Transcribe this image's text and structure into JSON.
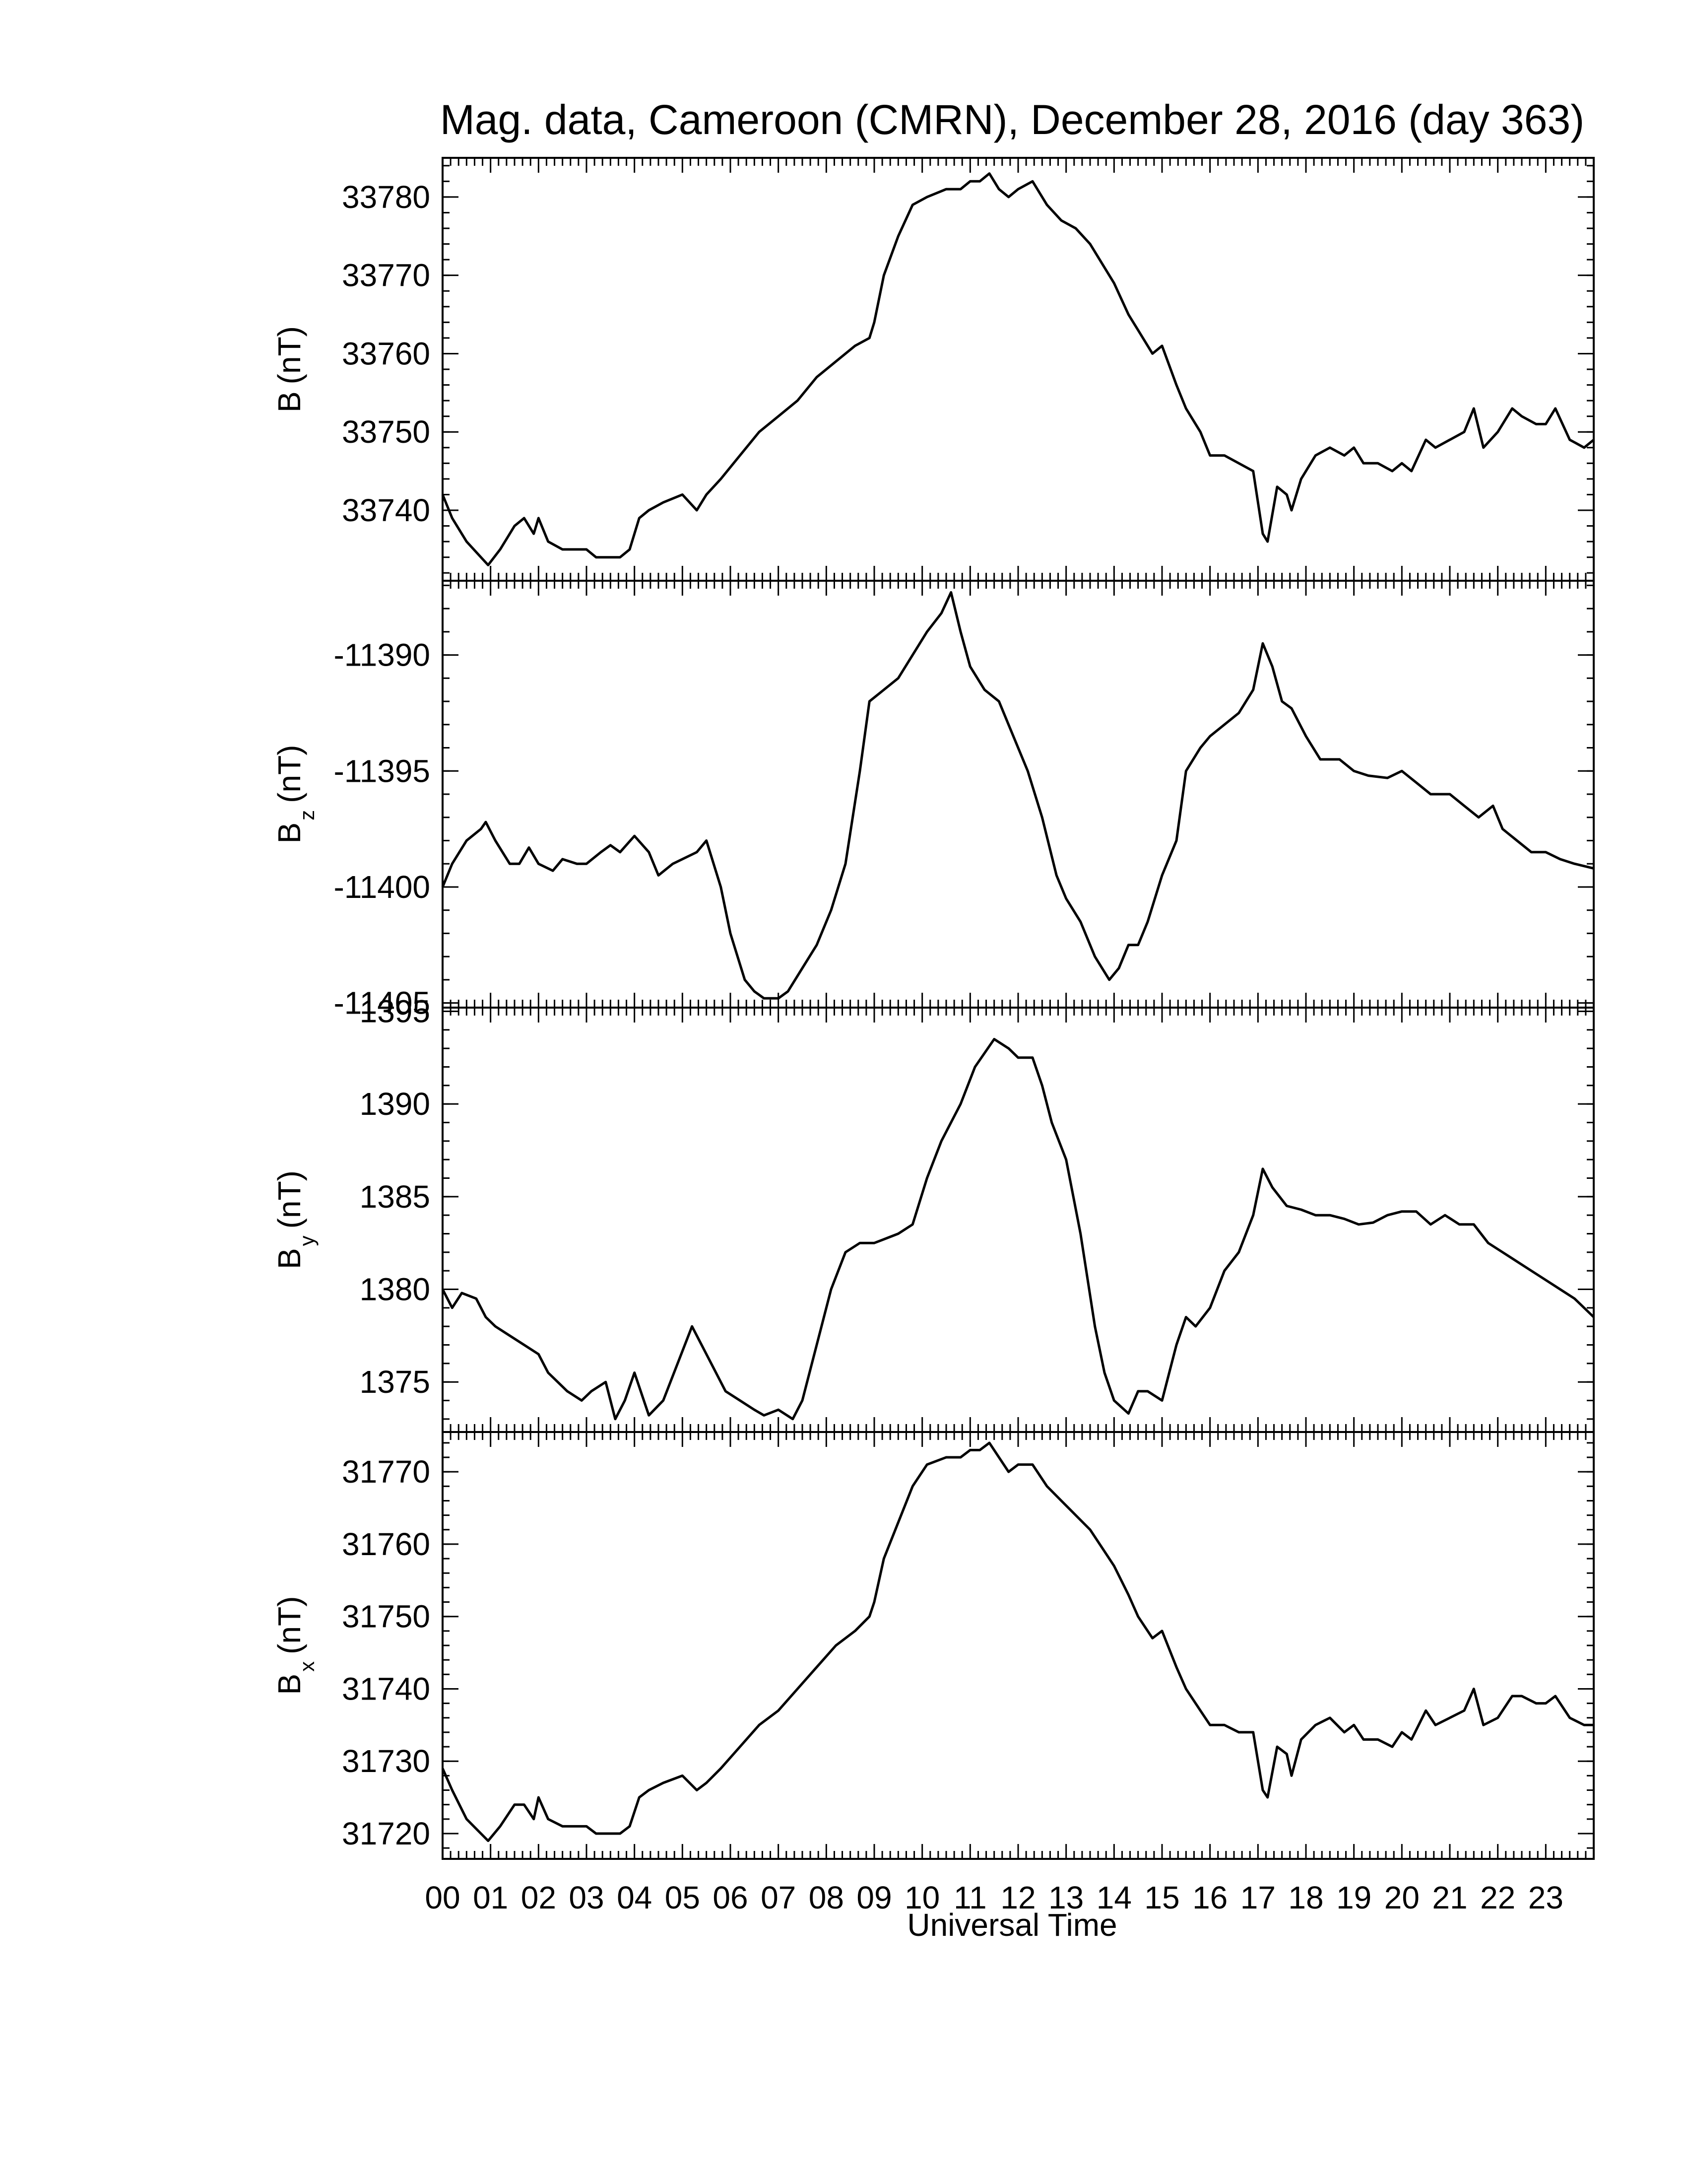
{
  "chart_data": {
    "type": "line",
    "title": "Mag. data, Cameroon (CMRN), December 28, 2016 (day 363)",
    "xlabel": "Universal Time",
    "x_ticks": [
      "00",
      "01",
      "02",
      "03",
      "04",
      "05",
      "06",
      "07",
      "08",
      "09",
      "10",
      "11",
      "12",
      "13",
      "14",
      "15",
      "16",
      "17",
      "18",
      "19",
      "20",
      "21",
      "22",
      "23"
    ],
    "xlim": [
      0,
      24
    ],
    "line_color": "#000000",
    "grid": false,
    "panels": [
      {
        "label_main": "B",
        "label_sub": "",
        "label_unit": "(nT)",
        "ylim": [
          33731,
          33785
        ],
        "yticks": [
          33740,
          33750,
          33760,
          33770,
          33780
        ],
        "ytick_labels": [
          "33740",
          "33750",
          "33760",
          "33770",
          "33780"
        ],
        "x": [
          0,
          0.2,
          0.5,
          0.8,
          0.95,
          1.2,
          1.5,
          1.7,
          1.9,
          2.0,
          2.2,
          2.5,
          2.8,
          3.0,
          3.2,
          3.5,
          3.7,
          3.9,
          4.1,
          4.3,
          4.6,
          5.0,
          5.3,
          5.5,
          5.8,
          6.2,
          6.6,
          7.0,
          7.4,
          7.8,
          8.2,
          8.6,
          8.9,
          9.0,
          9.2,
          9.5,
          9.8,
          10.1,
          10.5,
          10.8,
          11.0,
          11.2,
          11.4,
          11.6,
          11.8,
          12.0,
          12.3,
          12.6,
          12.9,
          13.2,
          13.5,
          13.8,
          14.0,
          14.3,
          14.5,
          14.8,
          15.0,
          15.3,
          15.5,
          15.8,
          16.0,
          16.3,
          16.6,
          16.9,
          17.1,
          17.2,
          17.4,
          17.6,
          17.7,
          17.9,
          18.2,
          18.5,
          18.8,
          19.0,
          19.2,
          19.5,
          19.8,
          20.0,
          20.2,
          20.5,
          20.7,
          21.0,
          21.3,
          21.5,
          21.7,
          22.0,
          22.3,
          22.5,
          22.8,
          23.0,
          23.2,
          23.5,
          23.8,
          24.0
        ],
        "values": [
          33742,
          33739,
          33736,
          33734,
          33733,
          33735,
          33738,
          33739,
          33737,
          33739,
          33736,
          33735,
          33735,
          33735,
          33734,
          33734,
          33734,
          33735,
          33739,
          33740,
          33741,
          33742,
          33740,
          33742,
          33744,
          33747,
          33750,
          33752,
          33754,
          33757,
          33759,
          33761,
          33762,
          33764,
          33770,
          33775,
          33779,
          33780,
          33781,
          33781,
          33782,
          33782,
          33783,
          33781,
          33780,
          33781,
          33782,
          33779,
          33777,
          33776,
          33774,
          33771,
          33769,
          33765,
          33763,
          33760,
          33761,
          33756,
          33753,
          33750,
          33747,
          33747,
          33746,
          33745,
          33737,
          33736,
          33743,
          33742,
          33740,
          33744,
          33747,
          33748,
          33747,
          33748,
          33746,
          33746,
          33745,
          33746,
          33745,
          33749,
          33748,
          33749,
          33750,
          33753,
          33748,
          33750,
          33753,
          33752,
          33751,
          33751,
          33753,
          33749,
          33748,
          33749
        ]
      },
      {
        "label_main": "B",
        "label_sub": "z",
        "label_unit": "(nT)",
        "ylim": [
          -11405.2,
          -11386.8
        ],
        "yticks": [
          -11405,
          -11400,
          -11395,
          -11390
        ],
        "ytick_labels": [
          "-11405",
          "-11400",
          "-11395",
          "-11390"
        ],
        "x": [
          0,
          0.2,
          0.5,
          0.8,
          0.9,
          1.1,
          1.4,
          1.6,
          1.8,
          2.0,
          2.3,
          2.5,
          2.8,
          3.0,
          3.3,
          3.5,
          3.7,
          4.0,
          4.3,
          4.5,
          4.8,
          5.0,
          5.3,
          5.5,
          5.8,
          6.0,
          6.3,
          6.5,
          6.7,
          7.0,
          7.2,
          7.5,
          7.8,
          8.1,
          8.4,
          8.7,
          8.9,
          9.2,
          9.5,
          9.8,
          10.1,
          10.4,
          10.6,
          10.8,
          11.0,
          11.3,
          11.6,
          11.9,
          12.2,
          12.5,
          12.8,
          13.0,
          13.3,
          13.6,
          13.9,
          14.1,
          14.3,
          14.5,
          14.7,
          15.0,
          15.3,
          15.5,
          15.8,
          16.0,
          16.3,
          16.6,
          16.9,
          17.1,
          17.3,
          17.5,
          17.7,
          18.0,
          18.3,
          18.7,
          19.0,
          19.3,
          19.7,
          20.0,
          20.3,
          20.6,
          21.0,
          21.3,
          21.6,
          21.9,
          22.1,
          22.4,
          22.7,
          23.0,
          23.3,
          23.6,
          24.0
        ],
        "values": [
          -11400,
          -11399,
          -11398,
          -11397.5,
          -11397.2,
          -11398,
          -11399,
          -11399,
          -11398.3,
          -11399,
          -11399.3,
          -11398.8,
          -11399,
          -11399,
          -11398.5,
          -11398.2,
          -11398.5,
          -11397.8,
          -11398.5,
          -11399.5,
          -11399,
          -11398.8,
          -11398.5,
          -11398,
          -11400,
          -11402,
          -11404,
          -11404.5,
          -11404.8,
          -11404.8,
          -11404.5,
          -11403.5,
          -11402.5,
          -11401,
          -11399,
          -11395,
          -11392,
          -11391.5,
          -11391,
          -11390,
          -11389,
          -11388.2,
          -11387.3,
          -11389,
          -11390.5,
          -11391.5,
          -11392,
          -11393.5,
          -11395,
          -11397,
          -11399.5,
          -11400.5,
          -11401.5,
          -11403,
          -11404,
          -11403.5,
          -11402.5,
          -11402.5,
          -11401.5,
          -11399.5,
          -11398,
          -11395,
          -11394,
          -11393.5,
          -11393,
          -11392.5,
          -11391.5,
          -11389.5,
          -11390.5,
          -11392,
          -11392.3,
          -11393.5,
          -11394.5,
          -11394.5,
          -11395,
          -11395.2,
          -11395.3,
          -11395,
          -11395.5,
          -11396,
          -11396,
          -11396.5,
          -11397,
          -11396.5,
          -11397.5,
          -11398,
          -11398.5,
          -11398.5,
          -11398.8,
          -11399,
          -11399.2
        ]
      },
      {
        "label_main": "B",
        "label_sub": "y",
        "label_unit": "(nT)",
        "ylim": [
          1372.3,
          1395.2
        ],
        "yticks": [
          1375,
          1380,
          1385,
          1390,
          1395
        ],
        "ytick_labels": [
          "1375",
          "1380",
          "1385",
          "1390",
          "1395"
        ],
        "x": [
          0,
          0.2,
          0.4,
          0.7,
          0.9,
          1.1,
          1.4,
          1.7,
          2.0,
          2.2,
          2.4,
          2.6,
          2.9,
          3.1,
          3.4,
          3.6,
          3.8,
          4.0,
          4.3,
          4.6,
          4.9,
          5.2,
          5.4,
          5.7,
          5.9,
          6.2,
          6.5,
          6.7,
          7.0,
          7.3,
          7.5,
          7.8,
          8.1,
          8.4,
          8.7,
          9.0,
          9.3,
          9.5,
          9.8,
          10.1,
          10.4,
          10.8,
          11.1,
          11.5,
          11.8,
          12.0,
          12.3,
          12.5,
          12.7,
          13.0,
          13.3,
          13.6,
          13.8,
          14.0,
          14.3,
          14.5,
          14.7,
          15.0,
          15.3,
          15.5,
          15.7,
          16.0,
          16.3,
          16.6,
          16.9,
          17.1,
          17.3,
          17.6,
          17.9,
          18.2,
          18.5,
          18.8,
          19.1,
          19.4,
          19.7,
          20.0,
          20.3,
          20.6,
          20.9,
          21.2,
          21.5,
          21.8,
          22.1,
          22.4,
          22.7,
          23.0,
          23.3,
          23.6,
          24.0
        ],
        "values": [
          1380,
          1379,
          1379.8,
          1379.5,
          1378.5,
          1378,
          1377.5,
          1377,
          1376.5,
          1375.5,
          1375,
          1374.5,
          1374,
          1374.5,
          1375,
          1373,
          1374,
          1375.5,
          1373.2,
          1374,
          1376,
          1378,
          1377,
          1375.5,
          1374.5,
          1374,
          1373.5,
          1373.2,
          1373.5,
          1373,
          1374,
          1377,
          1380,
          1382,
          1382.5,
          1382.5,
          1382.8,
          1383,
          1383.5,
          1386,
          1388,
          1390,
          1392,
          1393.5,
          1393,
          1392.5,
          1392.5,
          1391,
          1389,
          1387,
          1383,
          1378,
          1375.5,
          1374,
          1373.3,
          1374.5,
          1374.5,
          1374,
          1377,
          1378.5,
          1378,
          1379,
          1381,
          1382,
          1384,
          1386.5,
          1385.5,
          1384.5,
          1384.3,
          1384,
          1384,
          1383.8,
          1383.5,
          1383.6,
          1384,
          1384.2,
          1384.2,
          1383.5,
          1384,
          1383.5,
          1383.5,
          1382.5,
          1382,
          1381.5,
          1381,
          1380.5,
          1380,
          1379.5,
          1378.5
        ]
      },
      {
        "label_main": "B",
        "label_sub": "x",
        "label_unit": "(nT)",
        "ylim": [
          31716.5,
          31775.5
        ],
        "yticks": [
          31720,
          31730,
          31740,
          31750,
          31760,
          31770
        ],
        "ytick_labels": [
          "31720",
          "31730",
          "31740",
          "31750",
          "31760",
          "31770"
        ],
        "x": [
          0,
          0.2,
          0.5,
          0.8,
          0.95,
          1.2,
          1.5,
          1.7,
          1.9,
          2.0,
          2.2,
          2.5,
          2.8,
          3.0,
          3.2,
          3.5,
          3.7,
          3.9,
          4.1,
          4.3,
          4.6,
          5.0,
          5.3,
          5.5,
          5.8,
          6.2,
          6.6,
          7.0,
          7.4,
          7.8,
          8.2,
          8.6,
          8.9,
          9.0,
          9.2,
          9.5,
          9.8,
          10.1,
          10.5,
          10.8,
          11.0,
          11.2,
          11.4,
          11.6,
          11.8,
          12.0,
          12.3,
          12.6,
          12.9,
          13.2,
          13.5,
          13.8,
          14.0,
          14.3,
          14.5,
          14.8,
          15.0,
          15.3,
          15.5,
          15.8,
          16.0,
          16.3,
          16.6,
          16.9,
          17.1,
          17.2,
          17.4,
          17.6,
          17.7,
          17.9,
          18.2,
          18.5,
          18.8,
          19.0,
          19.2,
          19.5,
          19.8,
          20.0,
          20.2,
          20.5,
          20.7,
          21.0,
          21.3,
          21.5,
          21.7,
          22.0,
          22.3,
          22.5,
          22.8,
          23.0,
          23.2,
          23.5,
          23.8,
          24.0
        ],
        "values": [
          31729,
          31726,
          31722,
          31720,
          31719,
          31721,
          31724,
          31724,
          31722,
          31725,
          31722,
          31721,
          31721,
          31721,
          31720,
          31720,
          31720,
          31721,
          31725,
          31726,
          31727,
          31728,
          31726,
          31727,
          31729,
          31732,
          31735,
          31737,
          31740,
          31743,
          31746,
          31748,
          31750,
          31752,
          31758,
          31763,
          31768,
          31771,
          31772,
          31772,
          31773,
          31773,
          31774,
          31772,
          31770,
          31771,
          31771,
          31768,
          31766,
          31764,
          31762,
          31759,
          31757,
          31753,
          31750,
          31747,
          31748,
          31743,
          31740,
          31737,
          31735,
          31735,
          31734,
          31734,
          31726,
          31725,
          31732,
          31731,
          31728,
          31733,
          31735,
          31736,
          31734,
          31735,
          31733,
          31733,
          31732,
          31734,
          31733,
          31737,
          31735,
          31736,
          31737,
          31740,
          31735,
          31736,
          31739,
          31739,
          31738,
          31738,
          31739,
          31736,
          31735,
          31735
        ]
      }
    ]
  }
}
